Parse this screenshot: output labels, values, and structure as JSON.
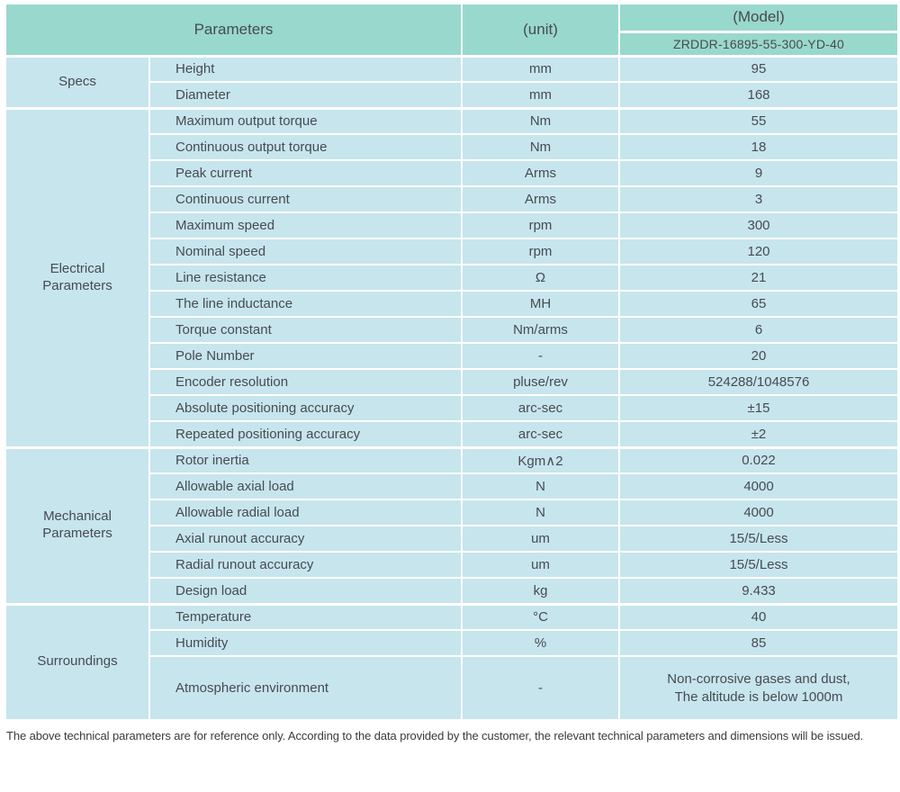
{
  "header": {
    "parameters_label": "Parameters",
    "unit_label": "(unit)",
    "model_label": "(Model)",
    "model_number": "ZRDDR-16895-55-300-YD-40"
  },
  "sections": [
    {
      "category": "Specs",
      "rows": [
        {
          "parameter": "Height",
          "unit": "mm",
          "value": "95"
        },
        {
          "parameter": "Diameter",
          "unit": "mm",
          "value": "168"
        }
      ]
    },
    {
      "category": "Electrical Parameters",
      "rows": [
        {
          "parameter": "Maximum output torque",
          "unit": "Nm",
          "value": "55"
        },
        {
          "parameter": "Continuous output torque",
          "unit": "Nm",
          "value": "18"
        },
        {
          "parameter": "Peak current",
          "unit": "Arms",
          "value": "9"
        },
        {
          "parameter": "Continuous current",
          "unit": "Arms",
          "value": "3"
        },
        {
          "parameter": "Maximum speed",
          "unit": "rpm",
          "value": "300"
        },
        {
          "parameter": "Nominal speed",
          "unit": "rpm",
          "value": "120"
        },
        {
          "parameter": "Line resistance",
          "unit": "Ω",
          "value": "21"
        },
        {
          "parameter": "The line inductance",
          "unit": "MH",
          "value": "65"
        },
        {
          "parameter": "Torque constant",
          "unit": "Nm/arms",
          "value": "6"
        },
        {
          "parameter": "Pole Number",
          "unit": "-",
          "value": "20"
        },
        {
          "parameter": "Encoder resolution",
          "unit": "pluse/rev",
          "value": "524288/1048576"
        },
        {
          "parameter": "Absolute positioning accuracy",
          "unit": "arc-sec",
          "value": "±15"
        },
        {
          "parameter": "Repeated positioning accuracy",
          "unit": "arc-sec",
          "value": "±2"
        }
      ]
    },
    {
      "category": "Mechanical Parameters",
      "rows": [
        {
          "parameter": "Rotor inertia",
          "unit": "Kgm∧2",
          "value": "0.022"
        },
        {
          "parameter": "Allowable axial load",
          "unit": "N",
          "value": "4000"
        },
        {
          "parameter": "Allowable radial load",
          "unit": "N",
          "value": "4000"
        },
        {
          "parameter": "Axial runout accuracy",
          "unit": "um",
          "value": "15/5/Less"
        },
        {
          "parameter": "Radial runout accuracy",
          "unit": "um",
          "value": "15/5/Less"
        },
        {
          "parameter": "Design load",
          "unit": "kg",
          "value": "9.433"
        }
      ]
    },
    {
      "category": "Surroundings",
      "rows": [
        {
          "parameter": "Temperature",
          "unit": "°C",
          "value": "40"
        },
        {
          "parameter": "Humidity",
          "unit": "%",
          "value": "85"
        },
        {
          "parameter": "Atmospheric environment",
          "unit": "-",
          "value": "Non-corrosive gases and dust,\nThe altitude is below 1000m",
          "tall": true
        }
      ]
    }
  ],
  "footer": "The above technical parameters are for reference only. According to the data provided by the customer, the relevant technical parameters and dimensions will be issued.",
  "colors": {
    "header_bg": "#99d8cd",
    "row_bg": "#c7e5ed",
    "divider": "#ffffff",
    "text": "#474b52",
    "footer_text": "#3a3a3a"
  }
}
